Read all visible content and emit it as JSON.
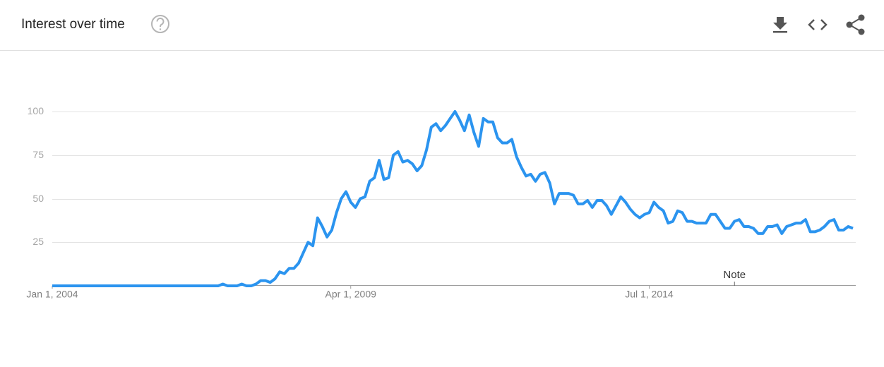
{
  "chart_data": {
    "type": "line",
    "title": "Interest over time",
    "values": [
      0,
      0,
      0,
      0,
      0,
      0,
      0,
      0,
      0,
      0,
      0,
      0,
      0,
      0,
      0,
      0,
      0,
      0,
      0,
      0,
      0,
      0,
      0,
      0,
      0,
      0,
      0,
      0,
      0,
      0,
      0,
      0,
      0,
      0,
      0,
      0,
      1,
      0,
      0,
      0,
      1,
      0,
      0,
      1,
      3,
      3,
      2,
      4,
      8,
      7,
      10,
      10,
      13,
      19,
      25,
      23,
      39,
      34,
      28,
      32,
      42,
      50,
      54,
      48,
      45,
      50,
      51,
      60,
      62,
      72,
      61,
      62,
      75,
      77,
      71,
      72,
      70,
      66,
      69,
      78,
      91,
      93,
      89,
      92,
      96,
      100,
      95,
      89,
      98,
      88,
      80,
      96,
      94,
      94,
      85,
      82,
      82,
      84,
      74,
      68,
      63,
      64,
      60,
      64,
      65,
      59,
      47,
      53,
      53,
      53,
      52,
      47,
      47,
      49,
      45,
      49,
      49,
      46,
      41,
      46,
      51,
      48,
      44,
      41,
      39,
      41,
      42,
      48,
      45,
      43,
      36,
      37,
      43,
      42,
      37,
      37,
      36,
      36,
      36,
      41,
      41,
      37,
      33,
      33,
      37,
      38,
      34,
      34,
      33,
      30,
      30,
      34,
      34,
      35,
      30,
      34,
      35,
      36,
      36,
      38,
      31,
      31,
      32,
      34,
      37,
      38,
      32,
      32,
      34,
      33
    ],
    "color": "#2b94ef",
    "xlim": [
      0,
      169
    ],
    "xticks": [
      {
        "value": 0,
        "label": "Jan 1, 2004"
      },
      {
        "value": 63,
        "label": "Apr 1, 2009"
      },
      {
        "value": 126,
        "label": "Jul 1, 2014"
      }
    ],
    "ylim": [
      0,
      100
    ],
    "yticks": [
      25,
      50,
      75,
      100
    ],
    "grid": true,
    "annotations": [
      {
        "text": "Note",
        "x": 144
      }
    ]
  }
}
